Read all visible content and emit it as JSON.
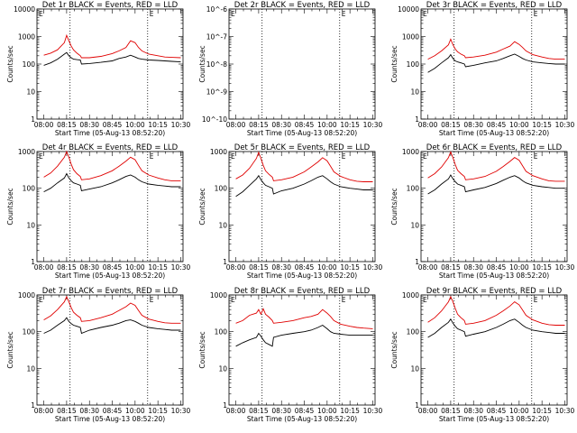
{
  "figure": {
    "xlabel": "Start Time (05-Aug-13 08:52:20)",
    "ylabel": "Counts/sec",
    "x_ticks": [
      "08:00",
      "08:15",
      "08:30",
      "08:45",
      "10:00",
      "10:15",
      "10:30"
    ],
    "marker_label": "E"
  },
  "colors": {
    "events": "#000000",
    "lld": "#e00000"
  },
  "chart_data": [
    {
      "type": "line",
      "title": "Det 1r BLACK = Events, RED = LLD",
      "scale": "log",
      "ylim": [
        1,
        10000
      ],
      "y_ticks": [
        1,
        10,
        100,
        1000,
        10000
      ],
      "markers": [
        1.15,
        4.55
      ],
      "series": [
        {
          "name": "Events",
          "x": [
            0,
            0.3,
            0.6,
            0.9,
            1.0,
            1.1,
            1.2,
            1.3,
            1.45,
            1.6,
            1.65,
            2.0,
            2.5,
            3.0,
            3.3,
            3.6,
            3.8,
            4.0,
            4.15,
            4.3,
            4.6,
            5.0,
            5.3,
            5.6,
            6.0
          ],
          "y": [
            90,
            110,
            150,
            230,
            260,
            200,
            170,
            150,
            145,
            140,
            100,
            105,
            115,
            130,
            160,
            180,
            210,
            180,
            160,
            150,
            140,
            135,
            130,
            125,
            120
          ]
        },
        {
          "name": "LLD",
          "x": [
            0,
            0.3,
            0.6,
            0.9,
            1.0,
            1.1,
            1.2,
            1.3,
            1.45,
            1.6,
            1.65,
            2.0,
            2.5,
            3.0,
            3.3,
            3.6,
            3.8,
            4.0,
            4.15,
            4.3,
            4.6,
            5.0,
            5.3,
            5.6,
            6.0
          ],
          "y": [
            210,
            250,
            330,
            600,
            1100,
            700,
            450,
            330,
            250,
            200,
            170,
            170,
            190,
            240,
            300,
            400,
            700,
            600,
            400,
            300,
            230,
            200,
            180,
            175,
            170
          ]
        }
      ]
    },
    {
      "type": "line",
      "title": "Det 2r BLACK = Events, RED = LLD",
      "scale": "log",
      "ylim": [
        1e-10,
        1e-06
      ],
      "y_ticks": [
        1e-10,
        1e-09,
        1e-08,
        1e-07,
        1e-06
      ],
      "y_tick_labels": [
        "10^-10",
        "10^-9",
        "10^-8",
        "10^-7",
        "10^-6"
      ],
      "markers": [
        1.15,
        4.55
      ],
      "series": []
    },
    {
      "type": "line",
      "title": "Det 3r BLACK = Events, RED = LLD",
      "scale": "log",
      "ylim": [
        1,
        10000
      ],
      "y_ticks": [
        1,
        10,
        100,
        1000,
        10000
      ],
      "markers": [
        1.15,
        4.55
      ],
      "series": [
        {
          "name": "Events",
          "x": [
            0,
            0.3,
            0.6,
            0.9,
            1.0,
            1.1,
            1.2,
            1.3,
            1.45,
            1.6,
            1.65,
            2.0,
            2.5,
            3.0,
            3.3,
            3.6,
            3.8,
            4.0,
            4.15,
            4.3,
            4.6,
            5.0,
            5.3,
            5.6,
            6.0
          ],
          "y": [
            50,
            70,
            110,
            170,
            220,
            160,
            130,
            120,
            110,
            100,
            80,
            90,
            110,
            130,
            160,
            200,
            230,
            190,
            160,
            140,
            120,
            110,
            105,
            100,
            100
          ]
        },
        {
          "name": "LLD",
          "x": [
            0,
            0.3,
            0.6,
            0.9,
            1.0,
            1.1,
            1.2,
            1.3,
            1.45,
            1.6,
            1.65,
            2.0,
            2.5,
            3.0,
            3.3,
            3.6,
            3.8,
            4.0,
            4.15,
            4.3,
            4.6,
            5.0,
            5.3,
            5.6,
            6.0
          ],
          "y": [
            150,
            200,
            300,
            500,
            800,
            500,
            350,
            280,
            230,
            200,
            170,
            180,
            210,
            270,
            350,
            450,
            650,
            520,
            400,
            300,
            220,
            180,
            160,
            150,
            150
          ]
        }
      ]
    },
    {
      "type": "line",
      "title": "Det 4r BLACK = Events, RED = LLD",
      "scale": "log",
      "ylim": [
        1,
        1000
      ],
      "y_ticks": [
        1,
        10,
        100,
        1000
      ],
      "markers": [
        1.15,
        4.55
      ],
      "series": [
        {
          "name": "Events",
          "x": [
            0,
            0.3,
            0.6,
            0.9,
            1.0,
            1.1,
            1.2,
            1.3,
            1.45,
            1.6,
            1.65,
            2.0,
            2.5,
            3.0,
            3.3,
            3.6,
            3.8,
            4.0,
            4.15,
            4.3,
            4.6,
            5.0,
            5.3,
            5.6,
            6.0
          ],
          "y": [
            80,
            100,
            140,
            190,
            250,
            190,
            160,
            140,
            130,
            120,
            85,
            95,
            110,
            140,
            170,
            210,
            230,
            200,
            170,
            150,
            130,
            120,
            115,
            110,
            110
          ]
        },
        {
          "name": "LLD",
          "x": [
            0,
            0.3,
            0.6,
            0.9,
            1.0,
            1.1,
            1.2,
            1.3,
            1.45,
            1.6,
            1.65,
            2.0,
            2.5,
            3.0,
            3.3,
            3.6,
            3.8,
            4.0,
            4.15,
            4.3,
            4.6,
            5.0,
            5.3,
            5.6,
            6.0
          ],
          "y": [
            200,
            260,
            400,
            700,
            1000,
            700,
            450,
            320,
            250,
            210,
            170,
            180,
            220,
            300,
            400,
            550,
            700,
            600,
            420,
            300,
            230,
            190,
            170,
            160,
            160
          ]
        }
      ]
    },
    {
      "type": "line",
      "title": "Det 5r BLACK = Events, RED = LLD",
      "scale": "log",
      "ylim": [
        1,
        1000
      ],
      "y_ticks": [
        1,
        10,
        100,
        1000
      ],
      "markers": [
        1.15,
        4.55
      ],
      "series": [
        {
          "name": "Events",
          "x": [
            0,
            0.3,
            0.6,
            0.9,
            1.0,
            1.1,
            1.2,
            1.3,
            1.45,
            1.6,
            1.65,
            2.0,
            2.5,
            3.0,
            3.3,
            3.6,
            3.8,
            4.0,
            4.15,
            4.3,
            4.6,
            5.0,
            5.3,
            5.6,
            6.0
          ],
          "y": [
            60,
            80,
            120,
            180,
            220,
            170,
            140,
            120,
            110,
            100,
            70,
            85,
            100,
            130,
            160,
            200,
            220,
            180,
            150,
            130,
            110,
            100,
            95,
            90,
            90
          ]
        },
        {
          "name": "LLD",
          "x": [
            0,
            0.3,
            0.6,
            0.9,
            1.0,
            1.1,
            1.2,
            1.3,
            1.45,
            1.6,
            1.65,
            2.0,
            2.5,
            3.0,
            3.3,
            3.6,
            3.8,
            4.0,
            4.15,
            4.3,
            4.6,
            5.0,
            5.3,
            5.6,
            6.0
          ],
          "y": [
            180,
            230,
            350,
            650,
            950,
            650,
            420,
            300,
            240,
            200,
            160,
            170,
            200,
            280,
            380,
            520,
            680,
            560,
            400,
            280,
            210,
            170,
            155,
            150,
            150
          ]
        }
      ]
    },
    {
      "type": "line",
      "title": "Det 6r BLACK = Events, RED = LLD",
      "scale": "log",
      "ylim": [
        1,
        1000
      ],
      "y_ticks": [
        1,
        10,
        100,
        1000
      ],
      "markers": [
        1.15,
        4.55
      ],
      "series": [
        {
          "name": "Events",
          "x": [
            0,
            0.3,
            0.6,
            0.9,
            1.0,
            1.1,
            1.2,
            1.3,
            1.45,
            1.6,
            1.65,
            2.0,
            2.5,
            3.0,
            3.3,
            3.6,
            3.8,
            4.0,
            4.15,
            4.3,
            4.6,
            5.0,
            5.3,
            5.6,
            6.0
          ],
          "y": [
            70,
            90,
            130,
            180,
            230,
            180,
            150,
            130,
            120,
            110,
            80,
            90,
            105,
            135,
            165,
            200,
            220,
            190,
            160,
            140,
            120,
            110,
            105,
            100,
            100
          ]
        },
        {
          "name": "LLD",
          "x": [
            0,
            0.3,
            0.6,
            0.9,
            1.0,
            1.1,
            1.2,
            1.3,
            1.45,
            1.6,
            1.65,
            2.0,
            2.5,
            3.0,
            3.3,
            3.6,
            3.8,
            4.0,
            4.15,
            4.3,
            4.6,
            5.0,
            5.3,
            5.6,
            6.0
          ],
          "y": [
            190,
            250,
            380,
            680,
            980,
            680,
            440,
            310,
            250,
            210,
            170,
            180,
            210,
            290,
            390,
            540,
            690,
            580,
            410,
            290,
            220,
            180,
            160,
            155,
            155
          ]
        }
      ]
    },
    {
      "type": "line",
      "title": "Det 7r BLACK = Events, RED = LLD",
      "scale": "log",
      "ylim": [
        1,
        1000
      ],
      "y_ticks": [
        1,
        10,
        100,
        1000
      ],
      "markers": [
        1.15,
        4.55
      ],
      "series": [
        {
          "name": "Events",
          "x": [
            0,
            0.3,
            0.6,
            0.9,
            1.0,
            1.1,
            1.2,
            1.3,
            1.45,
            1.6,
            1.65,
            2.0,
            2.5,
            3.0,
            3.3,
            3.6,
            3.8,
            4.0,
            4.15,
            4.3,
            4.6,
            5.0,
            5.3,
            5.6,
            6.0
          ],
          "y": [
            90,
            110,
            150,
            200,
            240,
            190,
            165,
            150,
            140,
            130,
            90,
            110,
            130,
            150,
            170,
            200,
            210,
            190,
            170,
            150,
            130,
            120,
            115,
            110,
            110
          ]
        },
        {
          "name": "LLD",
          "x": [
            0,
            0.3,
            0.6,
            0.9,
            1.0,
            1.1,
            1.2,
            1.3,
            1.45,
            1.6,
            1.65,
            2.0,
            2.5,
            3.0,
            3.3,
            3.6,
            3.8,
            4.0,
            4.15,
            4.3,
            4.6,
            5.0,
            5.3,
            5.6,
            6.0
          ],
          "y": [
            210,
            270,
            400,
            650,
            900,
            650,
            450,
            340,
            280,
            240,
            190,
            200,
            240,
            300,
            380,
            480,
            600,
            520,
            380,
            280,
            220,
            190,
            175,
            170,
            170
          ]
        }
      ]
    },
    {
      "type": "line",
      "title": "Det 8r BLACK = Events, RED = LLD",
      "scale": "log",
      "ylim": [
        1,
        1000
      ],
      "y_ticks": [
        1,
        10,
        100,
        1000
      ],
      "markers": [
        1.15,
        4.55
      ],
      "series": [
        {
          "name": "Events",
          "x": [
            0,
            0.3,
            0.6,
            0.9,
            1.0,
            1.1,
            1.2,
            1.3,
            1.45,
            1.6,
            1.65,
            2.0,
            2.5,
            3.0,
            3.3,
            3.6,
            3.8,
            4.0,
            4.15,
            4.3,
            4.6,
            5.0,
            5.3,
            5.6,
            6.0
          ],
          "y": [
            40,
            50,
            60,
            70,
            90,
            75,
            60,
            50,
            45,
            40,
            70,
            80,
            90,
            100,
            110,
            130,
            150,
            120,
            100,
            90,
            85,
            80,
            80,
            80,
            80
          ]
        },
        {
          "name": "LLD",
          "x": [
            0,
            0.3,
            0.6,
            0.9,
            1.0,
            1.1,
            1.2,
            1.3,
            1.45,
            1.6,
            1.65,
            2.0,
            2.5,
            3.0,
            3.3,
            3.6,
            3.8,
            4.0,
            4.15,
            4.3,
            4.6,
            5.0,
            5.3,
            5.6,
            6.0
          ],
          "y": [
            170,
            200,
            280,
            320,
            400,
            300,
            420,
            300,
            250,
            200,
            170,
            180,
            200,
            240,
            260,
            300,
            400,
            320,
            260,
            200,
            160,
            140,
            130,
            125,
            120
          ]
        }
      ]
    },
    {
      "type": "line",
      "title": "Det 9r BLACK = Events, RED = LLD",
      "scale": "log",
      "ylim": [
        1,
        1000
      ],
      "y_ticks": [
        1,
        10,
        100,
        1000
      ],
      "markers": [
        1.15,
        4.55
      ],
      "series": [
        {
          "name": "Events",
          "x": [
            0,
            0.3,
            0.6,
            0.9,
            1.0,
            1.1,
            1.2,
            1.3,
            1.45,
            1.6,
            1.65,
            2.0,
            2.5,
            3.0,
            3.3,
            3.6,
            3.8,
            4.0,
            4.15,
            4.3,
            4.6,
            5.0,
            5.3,
            5.6,
            6.0
          ],
          "y": [
            70,
            90,
            130,
            180,
            220,
            170,
            140,
            120,
            110,
            100,
            75,
            85,
            100,
            130,
            160,
            200,
            220,
            180,
            150,
            130,
            110,
            100,
            95,
            90,
            90
          ]
        },
        {
          "name": "LLD",
          "x": [
            0,
            0.3,
            0.6,
            0.9,
            1.0,
            1.1,
            1.2,
            1.3,
            1.45,
            1.6,
            1.65,
            2.0,
            2.5,
            3.0,
            3.3,
            3.6,
            3.8,
            4.0,
            4.15,
            4.3,
            4.6,
            5.0,
            5.3,
            5.6,
            6.0
          ],
          "y": [
            180,
            240,
            370,
            650,
            900,
            650,
            430,
            300,
            240,
            200,
            160,
            170,
            200,
            280,
            370,
            500,
            650,
            540,
            390,
            280,
            210,
            170,
            155,
            150,
            150
          ]
        }
      ]
    }
  ]
}
